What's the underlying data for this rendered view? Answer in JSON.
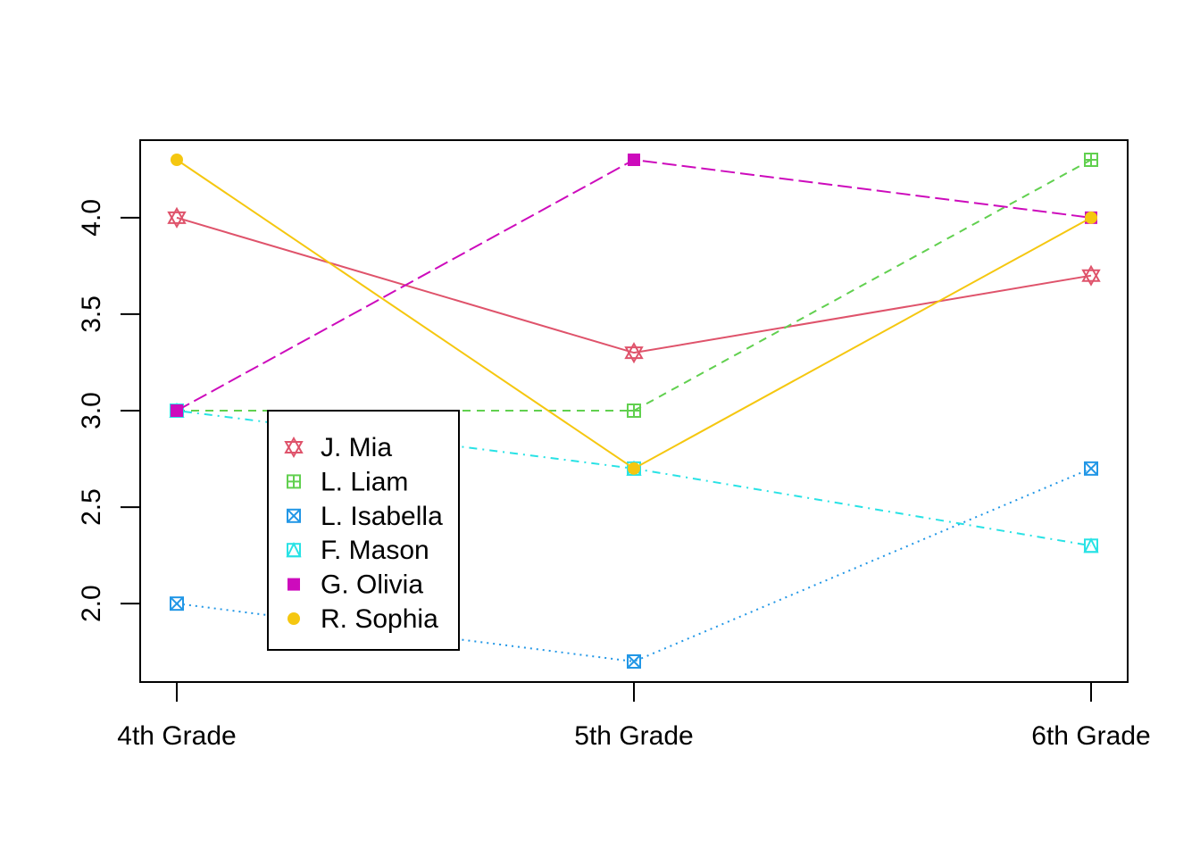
{
  "chart_data": {
    "type": "line",
    "title": "",
    "xlabel": "",
    "ylabel": "",
    "categories": [
      "4th Grade",
      "5th Grade",
      "6th Grade"
    ],
    "ylim": [
      1.6,
      4.4
    ],
    "y_ticks": [
      "2.0",
      "2.5",
      "3.0",
      "3.5",
      "4.0"
    ],
    "grid": false,
    "legend_position": "bottom-left",
    "series": [
      {
        "name": "J. Mia",
        "values": [
          4.0,
          3.3,
          3.7
        ],
        "color": "#DF536B",
        "dash": "solid",
        "marker": "star-of-david"
      },
      {
        "name": "L. Liam",
        "values": [
          3.0,
          3.0,
          4.3
        ],
        "color": "#61D04F",
        "dash": "dashed",
        "marker": "square-plus"
      },
      {
        "name": "L. Isabella",
        "values": [
          2.0,
          1.7,
          2.7
        ],
        "color": "#2297E6",
        "dash": "dotted",
        "marker": "square-x"
      },
      {
        "name": "F. Mason",
        "values": [
          3.0,
          2.7,
          2.3
        ],
        "color": "#28E2E5",
        "dash": "dotdash",
        "marker": "square-triangle"
      },
      {
        "name": "G. Olivia",
        "values": [
          3.0,
          4.3,
          4.0
        ],
        "color": "#CD0BBC",
        "dash": "longdash",
        "marker": "filled-square"
      },
      {
        "name": "R. Sophia",
        "values": [
          4.3,
          2.7,
          4.0
        ],
        "color": "#F5C710",
        "dash": "solid",
        "marker": "filled-circle"
      }
    ]
  }
}
